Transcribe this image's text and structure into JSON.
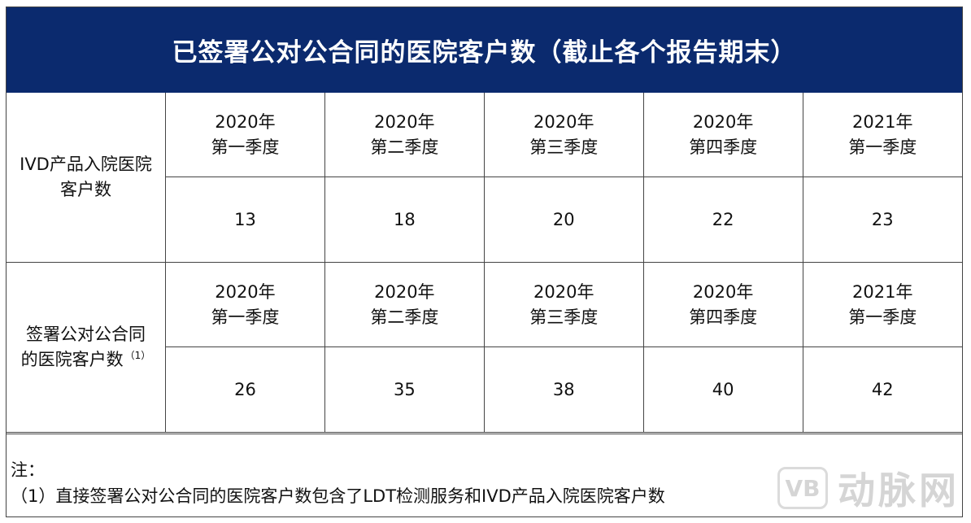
{
  "title": "已签署公对公合同的医院客户数（截止各个报告期末）",
  "sections": [
    {
      "label_lines": [
        "IVD产品入院医院",
        "客户数"
      ],
      "footnote_marker": "",
      "periods": [
        {
          "year": "2020年",
          "quarter": "第一季度"
        },
        {
          "year": "2020年",
          "quarter": "第二季度"
        },
        {
          "year": "2020年",
          "quarter": "第三季度"
        },
        {
          "year": "2020年",
          "quarter": "第四季度"
        },
        {
          "year": "2021年",
          "quarter": "第一季度"
        }
      ],
      "values": [
        "13",
        "18",
        "20",
        "22",
        "23"
      ]
    },
    {
      "label_lines": [
        "签署公对公合同",
        "的医院客户数"
      ],
      "footnote_marker": "（1）",
      "periods": [
        {
          "year": "2020年",
          "quarter": "第一季度"
        },
        {
          "year": "2020年",
          "quarter": "第二季度"
        },
        {
          "year": "2020年",
          "quarter": "第三季度"
        },
        {
          "year": "2020年",
          "quarter": "第四季度"
        },
        {
          "year": "2021年",
          "quarter": "第一季度"
        }
      ],
      "values": [
        "26",
        "35",
        "38",
        "40",
        "42"
      ]
    }
  ],
  "notes": {
    "heading": "注：",
    "items": [
      "（1）直接签署公对公合同的医院客户数包含了LDT检测服务和IVD产品入院医院客户数"
    ]
  },
  "watermark": {
    "logo_text": "VB",
    "text": "动脉网"
  },
  "colors": {
    "title_background": "#0b2a6e",
    "title_text": "#ffffff",
    "border": "#444444"
  }
}
